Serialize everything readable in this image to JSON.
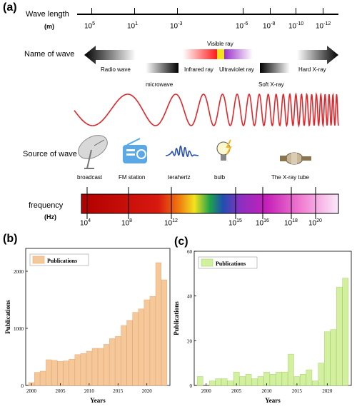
{
  "panel_a": {
    "label": "(a)",
    "wavelength_title": "Wave length",
    "wavelength_unit": "(m)",
    "wavelength_ticks": [
      {
        "base": "10",
        "exp": "5"
      },
      {
        "base": "10",
        "exp": "1"
      },
      {
        "base": "10",
        "exp": "-3"
      },
      {
        "base": "10",
        "exp": "-6"
      },
      {
        "base": "10",
        "exp": "-8"
      },
      {
        "base": "10",
        "exp": "-10"
      },
      {
        "base": "10",
        "exp": "-12"
      }
    ],
    "name_title": "Name of wave",
    "wave_names": {
      "radio": "Radio wave",
      "microwave": "microwave",
      "infrared": "Infrared ray",
      "visible": "Visible ray",
      "ultraviolet": "Ultraviolet ray",
      "soft_xray": "Soft X-ray",
      "hard_xray": "Hard X-ray"
    },
    "source_title": "Source of wave",
    "sources": {
      "broadcast": "broadcast",
      "fm": "FM station",
      "terahertz": "terahertz",
      "bulb": "bulb",
      "xray_tube": "The X-ray tube"
    },
    "freq_title": "frequency",
    "freq_unit": "(Hz)",
    "freq_ticks": [
      {
        "base": "10",
        "exp": "4"
      },
      {
        "base": "10",
        "exp": "8"
      },
      {
        "base": "10",
        "exp": "12"
      },
      {
        "base": "10",
        "exp": "15"
      },
      {
        "base": "10",
        "exp": "16"
      },
      {
        "base": "10",
        "exp": "18"
      },
      {
        "base": "10",
        "exp": "20"
      }
    ],
    "colors": {
      "wave": "#e0262b",
      "arrow_dark": "#000000"
    }
  },
  "chart_data": [
    {
      "type": "bar",
      "panel": "(b)",
      "xlabel": "Years",
      "ylabel": "Publications",
      "legend": "Publications",
      "legend_position": "top-left",
      "color": "#f5c89a",
      "edge": "#e8a873",
      "ylim": [
        0,
        2400
      ],
      "yticks": [
        "0",
        "1000",
        "2000"
      ],
      "xticks": [
        "2000",
        "2005",
        "2010",
        "2015",
        "2020"
      ],
      "categories": [
        2000,
        2001,
        2002,
        2003,
        2004,
        2005,
        2006,
        2007,
        2008,
        2009,
        2010,
        2011,
        2012,
        2013,
        2014,
        2015,
        2016,
        2017,
        2018,
        2019,
        2020,
        2021,
        2022,
        2023
      ],
      "values": [
        50,
        230,
        250,
        450,
        440,
        420,
        430,
        460,
        540,
        560,
        600,
        650,
        650,
        720,
        820,
        860,
        1050,
        1140,
        1280,
        1340,
        1500,
        1560,
        2150,
        1850
      ]
    },
    {
      "type": "bar",
      "panel": "(c)",
      "xlabel": "Years",
      "ylabel": "Publications",
      "legend": "Publications",
      "legend_position": "top-left",
      "color": "#d3f0a0",
      "edge": "#a6d36a",
      "ylim": [
        0,
        60
      ],
      "yticks": [
        "0",
        "20",
        "40",
        "60"
      ],
      "xticks": [
        "2000",
        "2005",
        "2010",
        "2015",
        "2020"
      ],
      "categories": [
        1999,
        2000,
        2001,
        2002,
        2003,
        2004,
        2005,
        2006,
        2007,
        2008,
        2009,
        2010,
        2011,
        2012,
        2013,
        2014,
        2015,
        2016,
        2017,
        2018,
        2019,
        2020,
        2021,
        2022,
        2023
      ],
      "values": [
        4,
        0,
        2,
        3,
        3,
        2,
        6,
        4,
        5,
        3,
        4,
        6,
        5,
        6,
        6,
        14,
        4,
        5,
        7,
        2,
        10,
        24,
        25,
        44,
        48
      ]
    }
  ]
}
